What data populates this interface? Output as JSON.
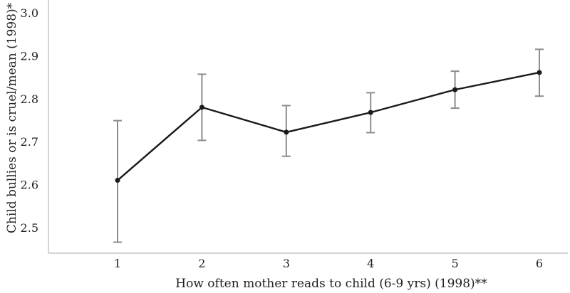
{
  "chart_data": {
    "type": "line",
    "xlabel": "How often mother reads to child (6-9 yrs) (1998)**",
    "ylabel": "Child bullies or is cruel/mean (1998)*",
    "categories": [
      "1",
      "2",
      "3",
      "4",
      "5",
      "6"
    ],
    "series": [
      {
        "values": [
          2.61,
          2.78,
          2.722,
          2.768,
          2.821,
          2.861
        ],
        "error_low": [
          2.466,
          2.703,
          2.666,
          2.721,
          2.778,
          2.806
        ],
        "error_high": [
          2.749,
          2.857,
          2.784,
          2.814,
          2.864,
          2.915
        ]
      }
    ],
    "yticks": [
      "2.5",
      "2.6",
      "2.7",
      "2.8",
      "2.9",
      "3.0"
    ],
    "ylim": [
      2.45,
      3.0
    ],
    "grid": false,
    "colors": {
      "line": "#1a1a1a",
      "error_bar": "#8c8c8c",
      "axis": "#aaaaaa"
    }
  }
}
